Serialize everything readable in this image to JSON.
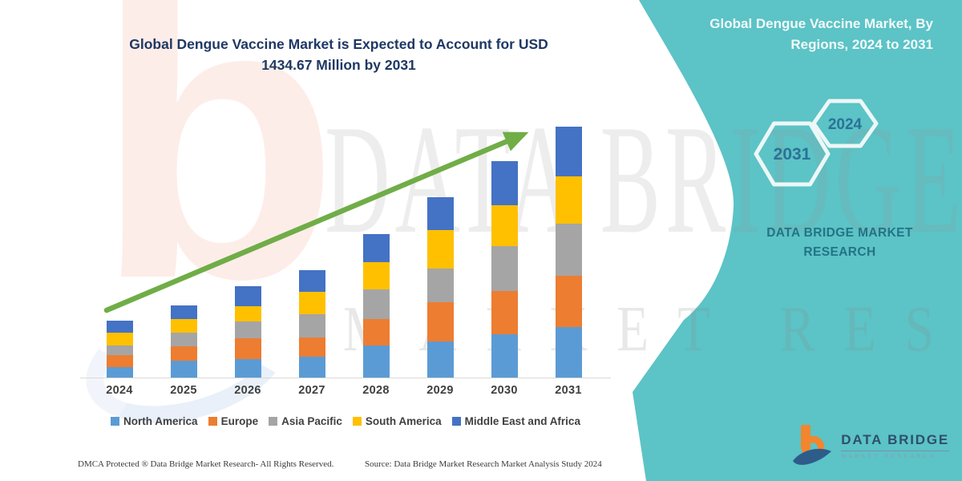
{
  "main_chart": {
    "title_line1": "Global Dengue Vaccine Market is Expected to Account for USD",
    "title_line2": "1434.67 Million by 2031",
    "title_color": "#1F3864"
  },
  "chart_data": {
    "type": "bar",
    "stacked": true,
    "unit": "USD Million",
    "title": "Global Dengue Vaccine Market is Expected to Account for USD 1434.67 Million by 2031",
    "categories": [
      "2024",
      "2025",
      "2026",
      "2027",
      "2028",
      "2029",
      "2030",
      "2031"
    ],
    "series": [
      {
        "name": "North America",
        "color": "#5B9BD5",
        "values": [
          60,
          97,
          106,
          120,
          185,
          208,
          250,
          287
        ]
      },
      {
        "name": "Europe",
        "color": "#ED7D31",
        "values": [
          69,
          83,
          120,
          111,
          148,
          222,
          245,
          296
        ]
      },
      {
        "name": "Asia Pacific",
        "color": "#A5A5A5",
        "values": [
          56,
          79,
          93,
          130,
          171,
          194,
          255,
          296
        ]
      },
      {
        "name": "South America",
        "color": "#FFC000",
        "values": [
          74,
          74,
          88,
          130,
          157,
          218,
          236,
          273.67
        ]
      },
      {
        "name": "Middle East and Africa",
        "color": "#4472C4",
        "values": [
          65,
          79,
          116,
          125,
          157,
          190,
          250,
          282
        ]
      }
    ],
    "totals": [
      324,
      412,
      523,
      616,
      818,
      1032,
      1236,
      1434.67
    ],
    "ylim": [
      0,
      1434.67
    ],
    "grid": false,
    "y_axis_visible": false,
    "legend_position": "bottom",
    "trend_arrow": {
      "color": "#70AD47",
      "from_category": "2024",
      "to_category": "2031"
    }
  },
  "sidebar": {
    "background_color": "#5CC3C6",
    "title_line1": "Global Dengue Vaccine Market, By",
    "title_line2": "Regions, 2024 to 2031",
    "hexagons": {
      "large_label": "2031",
      "small_label": "2024"
    },
    "brand_line1": "DATA BRIDGE MARKET",
    "brand_line2": "RESEARCH"
  },
  "watermark": {
    "letter": "b",
    "line1": "DATA BRIDGE",
    "line2": "MARKET RESEARCH"
  },
  "logo": {
    "name": "DATA BRIDGE",
    "tagline": "MARKET  RESEARCH"
  },
  "footer": {
    "left": "DMCA Protected ® Data Bridge Market Research-  All Rights Reserved.",
    "source": "Source: Data Bridge Market Research  Market Analysis Study 2024"
  }
}
